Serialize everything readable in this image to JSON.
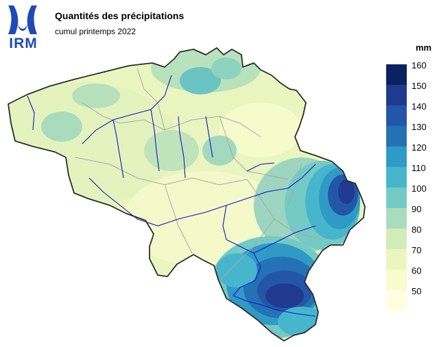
{
  "header": {
    "logo_text": "IRM",
    "title": "Quantités des précipitations",
    "subtitle": "cumul printemps 2022"
  },
  "legend": {
    "unit": "mm",
    "labels": [
      "160",
      "150",
      "140",
      "130",
      "120",
      "110",
      "100",
      "90",
      "80",
      "70",
      "60",
      "50"
    ],
    "colors": [
      "#0c2260",
      "#1f3a8f",
      "#2456a8",
      "#2472b3",
      "#2f9ac6",
      "#47b6cc",
      "#74cac4",
      "#a9dcbd",
      "#d2ecb8",
      "#ebf6bf",
      "#f8fbcb",
      "#ffffe0"
    ]
  },
  "colors": {
    "border": "#2b2b2b",
    "rivers": "#1515c8",
    "provinces": "#a8a8a8",
    "brand": "#1f49b8"
  }
}
